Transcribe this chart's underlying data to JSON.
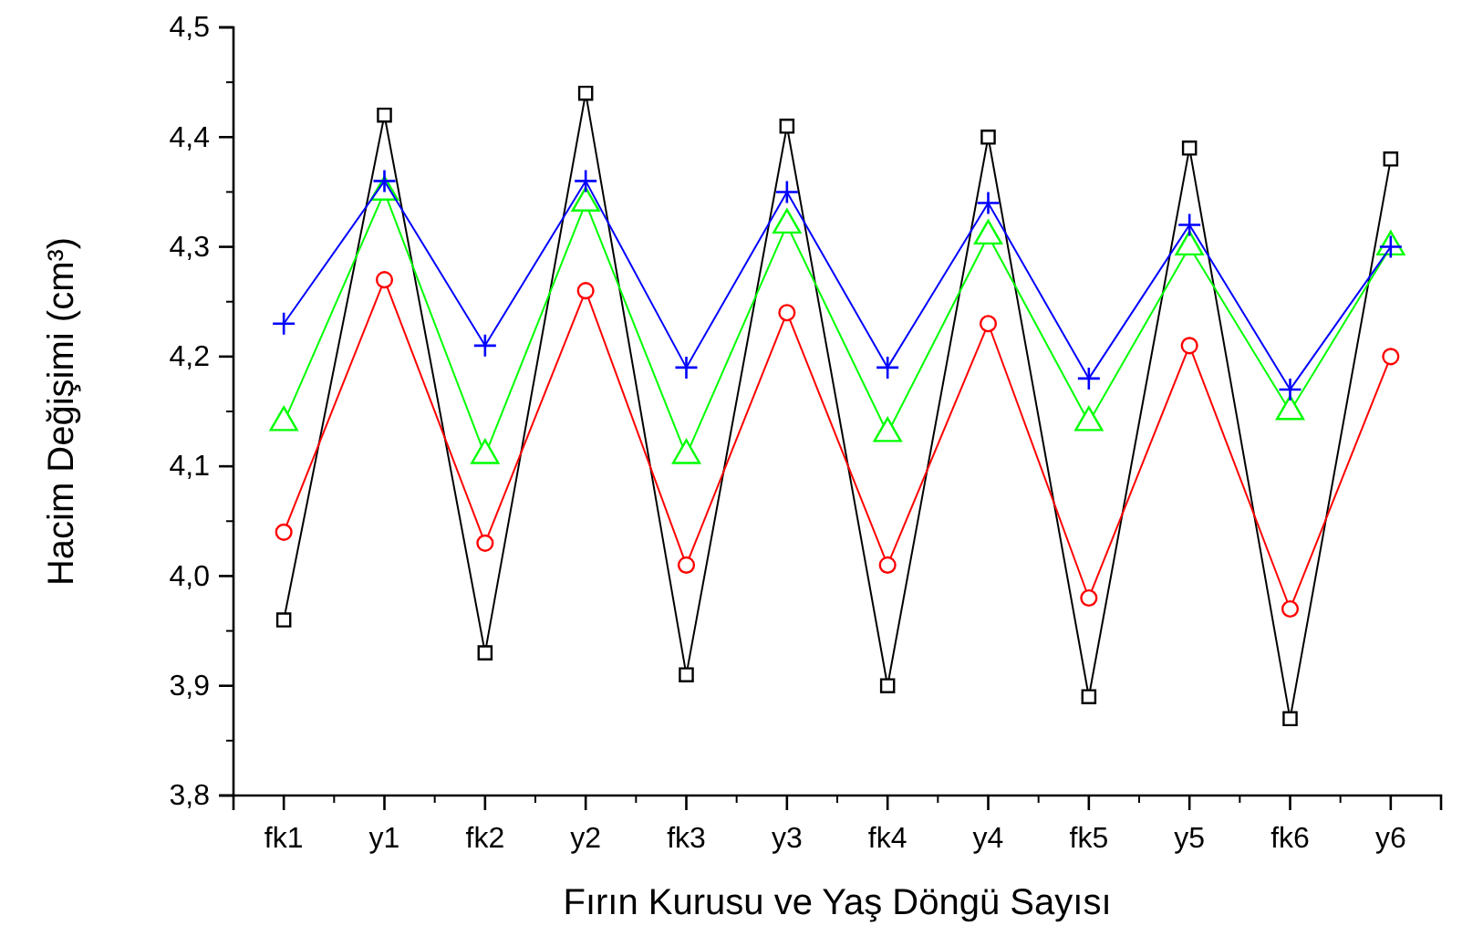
{
  "chart_data": {
    "type": "line",
    "xlabel": "Fırın Kurusu ve Yaş Döngü Sayısı",
    "ylabel": "Hacim Değişimi (cm³)",
    "categories": [
      "fk1",
      "y1",
      "fk2",
      "y2",
      "fk3",
      "y3",
      "fk4",
      "y4",
      "fk5",
      "y5",
      "fk6",
      "y6"
    ],
    "ylim": [
      3.8,
      4.5
    ],
    "yticks": [
      {
        "value": 3.8,
        "label": "3,8"
      },
      {
        "value": 3.9,
        "label": "3,9"
      },
      {
        "value": 4.0,
        "label": "4,0"
      },
      {
        "value": 4.1,
        "label": "4,1"
      },
      {
        "value": 4.2,
        "label": "4,2"
      },
      {
        "value": 4.3,
        "label": "4,3"
      },
      {
        "value": 4.4,
        "label": "4,4"
      },
      {
        "value": 4.5,
        "label": "4,5"
      }
    ],
    "grid": false,
    "line_style": "solid",
    "series": [
      {
        "color": "#000000",
        "marker": "square",
        "values": [
          3.96,
          4.42,
          3.93,
          4.44,
          3.91,
          4.41,
          3.9,
          4.4,
          3.89,
          4.39,
          3.87,
          4.38
        ]
      },
      {
        "color": "#ff0000",
        "marker": "circle",
        "values": [
          4.04,
          4.27,
          4.03,
          4.26,
          4.01,
          4.24,
          4.01,
          4.23,
          3.98,
          4.21,
          3.97,
          4.2
        ]
      },
      {
        "color": "#00ff00",
        "marker": "triangle",
        "values": [
          4.14,
          4.35,
          4.11,
          4.34,
          4.11,
          4.32,
          4.13,
          4.31,
          4.14,
          4.3,
          4.15,
          4.3
        ]
      },
      {
        "color": "#0000ff",
        "marker": "cross",
        "values": [
          4.23,
          4.36,
          4.21,
          4.36,
          4.19,
          4.35,
          4.19,
          4.34,
          4.18,
          4.32,
          4.17,
          4.3
        ]
      }
    ]
  }
}
